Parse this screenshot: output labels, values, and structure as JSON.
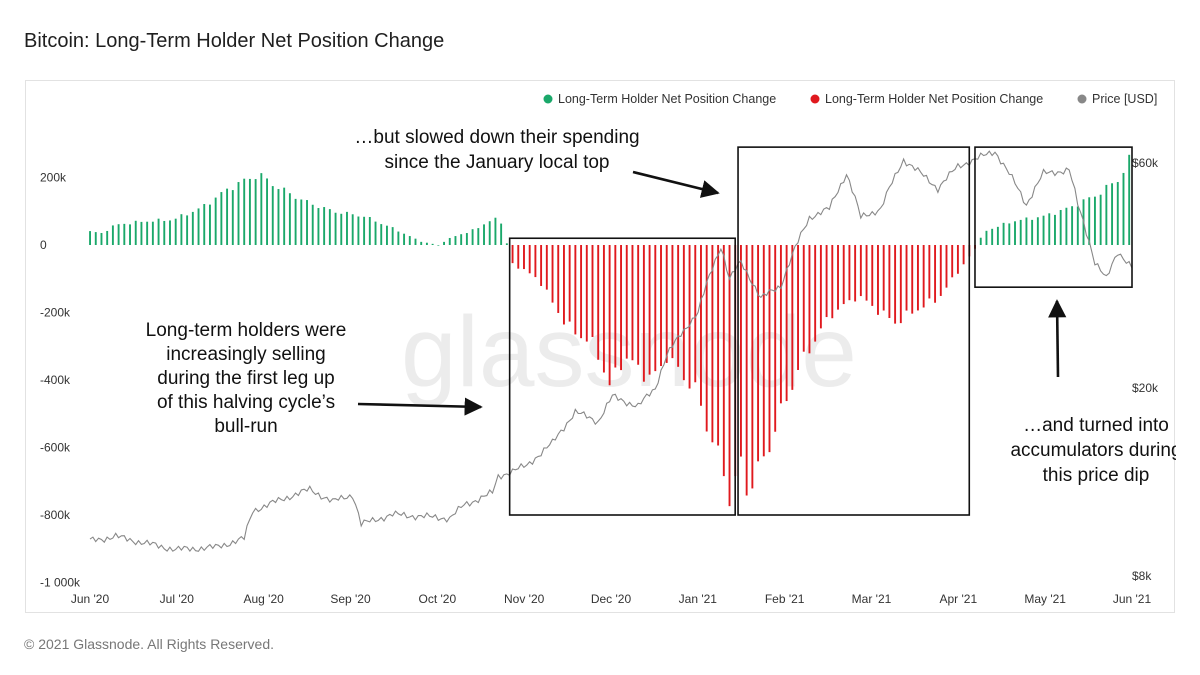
{
  "header": {
    "title": "Bitcoin: Long-Term Holder Net Position Change"
  },
  "footer": {
    "copyright": "© 2021 Glassnode. All Rights Reserved."
  },
  "watermark": "glassnode",
  "chart_data": {
    "type": "bar",
    "title": "Bitcoin: Long-Term Holder Net Position Change",
    "x_ticks": [
      "Jun '20",
      "Jul '20",
      "Aug '20",
      "Sep '20",
      "Oct '20",
      "Nov '20",
      "Dec '20",
      "Jan '21",
      "Feb '21",
      "Mar '21",
      "Apr '21",
      "May '21",
      "Jun '21"
    ],
    "y_left_ticks": [
      "200k",
      "0",
      "-200k",
      "-400k",
      "-600k",
      "-800k",
      "-1 000k"
    ],
    "y_left_values": [
      200000,
      0,
      -200000,
      -400000,
      -600000,
      -800000,
      -1000000
    ],
    "y_left_range": [
      -1000000,
      300000
    ],
    "y_right_ticks": [
      "$60k",
      "$20k",
      "$8k"
    ],
    "y_right_values": [
      60000,
      20000,
      8000
    ],
    "y_right_scale": "log",
    "y_right_range": [
      8000,
      75000
    ],
    "x_range": [
      "2020-06-01",
      "2021-06-01"
    ],
    "legend_position": "top-right",
    "legend": [
      {
        "label": "Long-Term Holder Net Position Change",
        "color": "#1aa86a"
      },
      {
        "label": "Long-Term Holder Net Position Change",
        "color": "#e0191e"
      },
      {
        "label": "Price [USD]",
        "color": "#888888"
      }
    ],
    "colors": {
      "positive": "#1aa86a",
      "negative": "#e0191e",
      "price": "#888888"
    },
    "series": [
      {
        "name": "Long-Term Holder Net Position Change",
        "anchor_points": [
          [
            "2020-06-01",
            40000
          ],
          [
            "2020-06-05",
            35000
          ],
          [
            "2020-06-10",
            60000
          ],
          [
            "2020-06-20",
            70000
          ],
          [
            "2020-06-30",
            75000
          ],
          [
            "2020-07-10",
            110000
          ],
          [
            "2020-07-20",
            170000
          ],
          [
            "2020-07-30",
            210000
          ],
          [
            "2020-08-05",
            175000
          ],
          [
            "2020-08-15",
            130000
          ],
          [
            "2020-08-25",
            100000
          ],
          [
            "2020-09-05",
            85000
          ],
          [
            "2020-09-15",
            50000
          ],
          [
            "2020-09-25",
            10000
          ],
          [
            "2020-10-01",
            0
          ],
          [
            "2020-10-05",
            20000
          ],
          [
            "2020-10-15",
            50000
          ],
          [
            "2020-10-20",
            80000
          ],
          [
            "2020-10-24",
            60000
          ],
          [
            "2020-10-26",
            -50000
          ],
          [
            "2020-11-05",
            -100000
          ],
          [
            "2020-11-15",
            -240000
          ],
          [
            "2020-11-25",
            -300000
          ],
          [
            "2020-11-30",
            -420000
          ],
          [
            "2020-12-05",
            -330000
          ],
          [
            "2020-12-15",
            -400000
          ],
          [
            "2020-12-20",
            -330000
          ],
          [
            "2020-12-30",
            -430000
          ],
          [
            "2021-01-05",
            -580000
          ],
          [
            "2021-01-10",
            -700000
          ],
          [
            "2021-01-12",
            -780000
          ],
          [
            "2021-01-14",
            -620000
          ],
          [
            "2021-01-17",
            -720000
          ],
          [
            "2021-01-22",
            -660000
          ],
          [
            "2021-01-28",
            -520000
          ],
          [
            "2021-02-05",
            -350000
          ],
          [
            "2021-02-15",
            -210000
          ],
          [
            "2021-02-25",
            -150000
          ],
          [
            "2021-03-05",
            -200000
          ],
          [
            "2021-03-10",
            -230000
          ],
          [
            "2021-03-20",
            -180000
          ],
          [
            "2021-03-25",
            -160000
          ],
          [
            "2021-04-01",
            -80000
          ],
          [
            "2021-04-08",
            0
          ],
          [
            "2021-04-10",
            40000
          ],
          [
            "2021-04-20",
            70000
          ],
          [
            "2021-05-01",
            85000
          ],
          [
            "2021-05-10",
            110000
          ],
          [
            "2021-05-20",
            150000
          ],
          [
            "2021-05-28",
            200000
          ],
          [
            "2021-06-01",
            270000
          ]
        ]
      },
      {
        "name": "Price [USD]",
        "anchor_points": [
          [
            "2020-06-01",
            9500
          ],
          [
            "2020-06-10",
            9700
          ],
          [
            "2020-06-20",
            9400
          ],
          [
            "2020-07-01",
            9100
          ],
          [
            "2020-07-15",
            9200
          ],
          [
            "2020-07-25",
            9600
          ],
          [
            "2020-07-28",
            11000
          ],
          [
            "2020-08-10",
            11800
          ],
          [
            "2020-08-17",
            12200
          ],
          [
            "2020-08-25",
            11500
          ],
          [
            "2020-09-01",
            11900
          ],
          [
            "2020-09-04",
            10300
          ],
          [
            "2020-09-15",
            10800
          ],
          [
            "2020-09-25",
            10700
          ],
          [
            "2020-10-05",
            10600
          ],
          [
            "2020-10-10",
            11300
          ],
          [
            "2020-10-20",
            12000
          ],
          [
            "2020-10-22",
            13000
          ],
          [
            "2020-11-01",
            13700
          ],
          [
            "2020-11-10",
            15300
          ],
          [
            "2020-11-18",
            17800
          ],
          [
            "2020-11-26",
            17000
          ],
          [
            "2020-12-01",
            19200
          ],
          [
            "2020-12-10",
            18300
          ],
          [
            "2020-12-16",
            20000
          ],
          [
            "2020-12-20",
            23500
          ],
          [
            "2020-12-31",
            29000
          ],
          [
            "2021-01-08",
            40000
          ],
          [
            "2021-01-11",
            34000
          ],
          [
            "2021-01-15",
            37000
          ],
          [
            "2021-01-22",
            31000
          ],
          [
            "2021-01-29",
            33000
          ],
          [
            "2021-02-08",
            46000
          ],
          [
            "2021-02-15",
            48000
          ],
          [
            "2021-02-21",
            57000
          ],
          [
            "2021-02-26",
            46000
          ],
          [
            "2021-03-05",
            48000
          ],
          [
            "2021-03-13",
            61000
          ],
          [
            "2021-03-25",
            53000
          ],
          [
            "2021-04-01",
            59000
          ],
          [
            "2021-04-14",
            63500
          ],
          [
            "2021-04-25",
            49000
          ],
          [
            "2021-05-01",
            57000
          ],
          [
            "2021-05-10",
            58000
          ],
          [
            "2021-05-13",
            49000
          ],
          [
            "2021-05-19",
            37000
          ],
          [
            "2021-05-23",
            34000
          ],
          [
            "2021-05-27",
            39000
          ],
          [
            "2021-06-01",
            36000
          ]
        ]
      }
    ],
    "annotations": [
      {
        "id": "selling",
        "lines": [
          "Long-term holders were",
          "increasingly selling",
          "during the first leg up",
          "of this halving cycle’s",
          "bull-run"
        ]
      },
      {
        "id": "slowed",
        "lines": [
          "…but slowed down their spending",
          "since the January local top"
        ]
      },
      {
        "id": "accumulate",
        "lines": [
          "…and turned into",
          "accumulators during",
          "this price dip"
        ]
      }
    ],
    "highlight_boxes": [
      {
        "from": "2020-10-26",
        "to": "2021-01-13",
        "y_top": 20000,
        "y_bottom": -800000
      },
      {
        "from": "2021-01-14",
        "to": "2021-04-05",
        "y_top": 290000,
        "y_bottom": -800000
      },
      {
        "from": "2021-04-07",
        "to": "2021-06-01",
        "y_top": 290000,
        "y_bottom": -125000
      }
    ]
  }
}
